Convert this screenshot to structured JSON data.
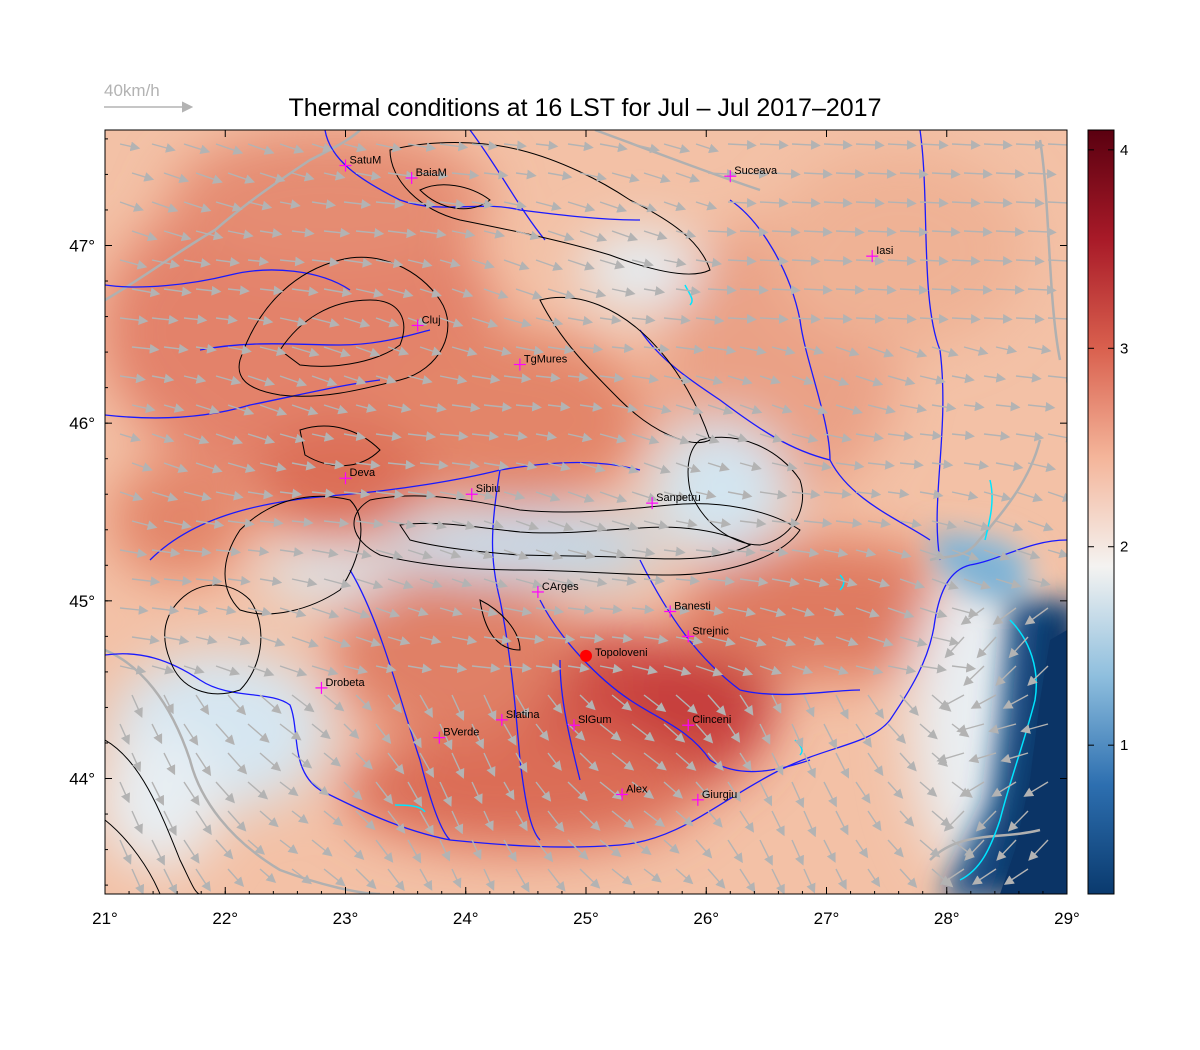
{
  "title": "Thermal conditions at 16 LST for Jul – Jul  2017–2017",
  "wind_reference": {
    "label": "40km/h",
    "color": "#b3b3b3"
  },
  "axes": {
    "lon_ticks": [
      "21°",
      "22°",
      "23°",
      "24°",
      "25°",
      "26°",
      "27°",
      "28°",
      "29°"
    ],
    "lat_ticks": [
      "44°",
      "45°",
      "46°",
      "47°"
    ],
    "lon_range": [
      21,
      29
    ],
    "lat_range": [
      43.35,
      47.65
    ]
  },
  "colorbar": {
    "ticks": [
      "1",
      "2",
      "3",
      "4"
    ],
    "range": [
      0.25,
      4.1
    ],
    "colors": [
      "#0a3a6e",
      "#2d6fb0",
      "#8fbfde",
      "#f4f3f1",
      "#f4b59a",
      "#d9604e",
      "#a81a28",
      "#5a0010"
    ]
  },
  "cities": [
    {
      "name": "SatuM",
      "lon": 23.0,
      "lat": 47.45
    },
    {
      "name": "BaiaM",
      "lon": 23.55,
      "lat": 47.38
    },
    {
      "name": "Suceava",
      "lon": 26.2,
      "lat": 47.39
    },
    {
      "name": "Iasi",
      "lon": 27.38,
      "lat": 46.94
    },
    {
      "name": "Cluj",
      "lon": 23.6,
      "lat": 46.55
    },
    {
      "name": "TgMures",
      "lon": 24.45,
      "lat": 46.33
    },
    {
      "name": "Deva",
      "lon": 23.0,
      "lat": 45.69
    },
    {
      "name": "Sibiu",
      "lon": 24.05,
      "lat": 45.6
    },
    {
      "name": "Sanpetru",
      "lon": 25.55,
      "lat": 45.55
    },
    {
      "name": "CArges",
      "lon": 24.6,
      "lat": 45.05
    },
    {
      "name": "Banesti",
      "lon": 25.7,
      "lat": 44.94
    },
    {
      "name": "Strejnic",
      "lon": 25.85,
      "lat": 44.8
    },
    {
      "name": "Drobeta",
      "lon": 22.8,
      "lat": 44.51
    },
    {
      "name": "Slatina",
      "lon": 24.3,
      "lat": 44.33
    },
    {
      "name": "SlGum",
      "lon": 24.9,
      "lat": 44.3
    },
    {
      "name": "Clinceni",
      "lon": 25.85,
      "lat": 44.3
    },
    {
      "name": "BVerde",
      "lon": 23.78,
      "lat": 44.23
    },
    {
      "name": "Alex",
      "lon": 25.3,
      "lat": 43.91
    },
    {
      "name": "Giurgiu",
      "lon": 25.93,
      "lat": 43.88
    }
  ],
  "highlight_site": {
    "name": "Topoloveni",
    "lon": 25.0,
    "lat": 44.69,
    "color": "#ff0000"
  },
  "colors": {
    "rivers": "#1a1aff",
    "borders": "#b0b0b0",
    "city_marker": "#ff00ff",
    "lakes": "#00e5ff",
    "wind_arrows": "#b3b3b3"
  }
}
